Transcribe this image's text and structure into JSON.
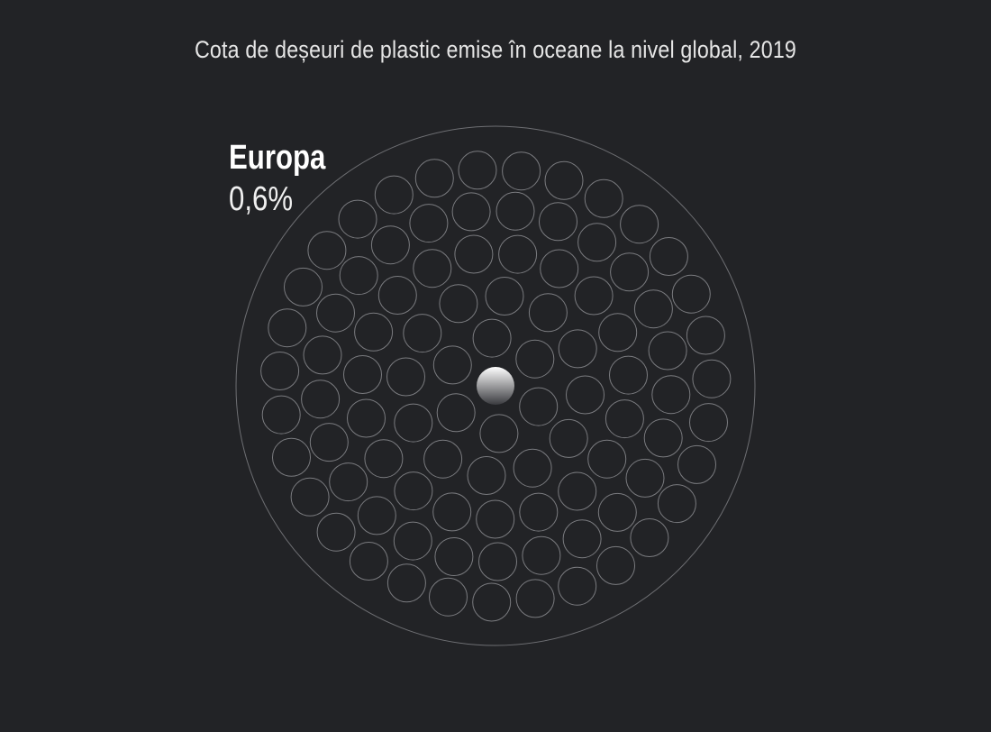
{
  "title": "Cota de deșeuri de plastic emise în oceane la nivel global, 2019",
  "chart_data": {
    "type": "pie",
    "title": "Cota de deșeuri de plastic emise în oceane la nivel global, 2019",
    "series": [
      {
        "name": "Europa",
        "value": 0.6,
        "label": "0,6%",
        "highlighted": true
      }
    ],
    "unit": "%"
  },
  "highlight": {
    "name": "Europa",
    "value_label": "0,6%"
  },
  "colors": {
    "background": "#222326",
    "outline": "#7a7b7f",
    "highlight_top": "#ffffff",
    "highlight_bottom": "#3a3b3f"
  }
}
